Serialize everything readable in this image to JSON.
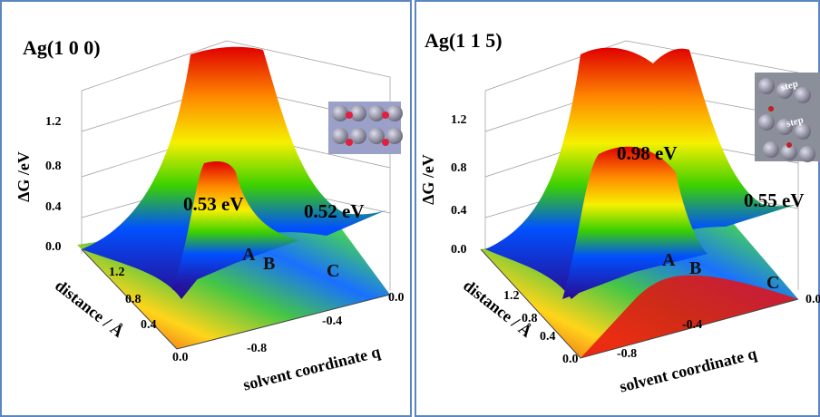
{
  "panels": [
    {
      "title": "Ag(1 0 0)",
      "z_label": "ΔG /eV",
      "z_ticks": [
        "1.2",
        "0.8",
        "0.4",
        "0.0"
      ],
      "distance_label": "distance / Å",
      "distance_ticks": [
        "1.2",
        "0.8",
        "0.4",
        "0.0"
      ],
      "q_label": "solvent coordinate q",
      "q_ticks": [
        "0.0",
        "-0.4",
        "-0.8"
      ],
      "annotations": [
        "0.53 eV",
        "0.52 eV"
      ],
      "points": [
        "A",
        "B",
        "C"
      ]
    },
    {
      "title": "Ag(1 1 5)",
      "z_label": "ΔG /eV",
      "z_ticks": [
        "1.2",
        "0.8",
        "0.4",
        "0.0"
      ],
      "distance_label": "distance / Å",
      "distance_ticks": [
        "1.2",
        "0.8",
        "0.4",
        "0.0"
      ],
      "q_label": "solvent coordinate q",
      "q_ticks": [
        "0.0",
        "-0.4",
        "-0.8"
      ],
      "annotations": [
        "0.98 eV",
        "0.55 eV"
      ],
      "points": [
        "A",
        "B",
        "C"
      ],
      "inset_labels": [
        "step",
        "step"
      ]
    }
  ]
}
